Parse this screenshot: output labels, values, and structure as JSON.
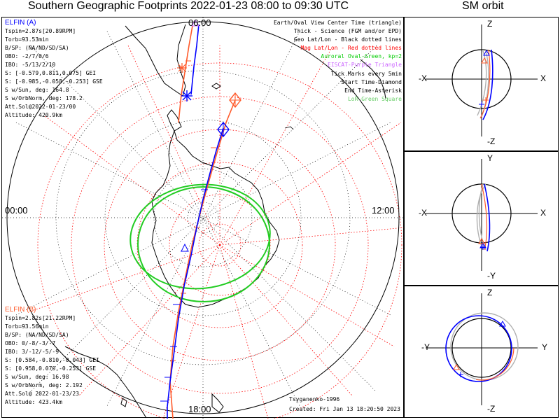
{
  "titles": {
    "main": "Southern Geographic Footprints 2022-01-23 08:00 to 09:30 UTC",
    "orbit": "SM orbit"
  },
  "map": {
    "time_labels": {
      "left": "00:00",
      "right": "12:00",
      "top": "06:00",
      "bottom": "18:00"
    }
  },
  "legend": [
    {
      "text": "Earth/Oval View Center Time (triangle)",
      "color": "#000000"
    },
    {
      "text": "Thick - Science (FGM and/or EPD)",
      "color": "#000000"
    },
    {
      "text": "Geo Lat/Lon - Black dotted lines",
      "color": "#000000"
    },
    {
      "text": "Mag Lat/Lon - Red dotted lines",
      "color": "#ff0000"
    },
    {
      "text": "Auroral Oval-Green, kp=2",
      "color": "#00cc00"
    },
    {
      "text": "EISCAT-Purple Triangle",
      "color": "#cc66ff"
    },
    {
      "text": "Tick Marks every 5min",
      "color": "#000000"
    },
    {
      "text": "Start Time-Diamond",
      "color": "#000000"
    },
    {
      "text": "End Time-Asterisk",
      "color": "#000000"
    },
    {
      "text": "LoR-Green Square",
      "color": "#66cc66"
    }
  ],
  "elfin_a": {
    "name": "ELFIN (A)",
    "color": "#0000ff",
    "lines": [
      "Tspin=2.87s[20.89RPM]",
      "Torb=93.53min",
      "B/SP: (NA/ND/SD/SA)",
      "OBO: -2/7/0/6",
      "IBO: -5/13/2/10",
      "S: [-0.579,0.811,0.075] GEI",
      "S: [-0.985,-0.058,-0.253] GSE",
      "S w/Sun, deg: 164.8",
      "S w/OrbNorm, deg: 178.2",
      "Att.Sol@2022-01-23/00",
      "Altitude: 420.9km"
    ]
  },
  "elfin_b": {
    "name": "ELFIN (B)",
    "color": "#ff5a2a",
    "lines": [
      "Tspin=2.82s[21.22RPM]",
      "Torb=93.56min",
      "B/SP: (NA/ND/SD/SA)",
      "OBO: 0/-8/-3/-7",
      "IBO: 3/-12/-5/-9",
      "S: [0.584,-0.810,-0.043] GEI",
      "S: [0.958,0.070,-0.253] GSE",
      "S w/Sun, deg: 16.98",
      "S w/OrbNorm, deg: 2.192",
      "Att.Sol@ 2022-01-23/23",
      "Altitude: 423.4km"
    ]
  },
  "credit": {
    "model": "Tsyganenko-1996",
    "created": "Created: Fri Jan 13 18:20:50 2023"
  },
  "orbit_panels": [
    {
      "top": "Z",
      "bottom": "-Z",
      "left": "-X",
      "right": "X"
    },
    {
      "top": "Y",
      "bottom": "-Y",
      "left": "-X",
      "right": "X"
    },
    {
      "top": "Z",
      "bottom": "-Z",
      "left": "-Y",
      "right": "Y"
    }
  ],
  "colors": {
    "elfin_a": "#0000ff",
    "elfin_b": "#ff5a2a",
    "geo_grid": "#000000",
    "mag_grid": "#ff0000",
    "auroral_oval": "#22cc22",
    "orbit_earth": "#000000",
    "orbit_gray": "#b0b0b0"
  }
}
